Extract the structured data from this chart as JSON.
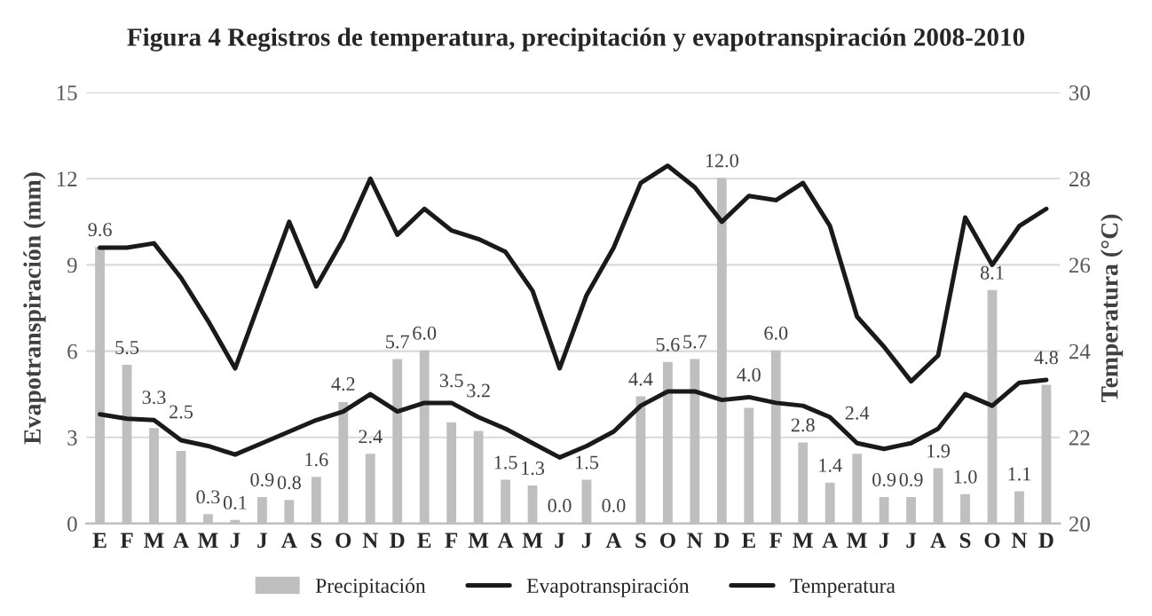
{
  "chart_data": {
    "type": "bar",
    "title": "Figura 4 Registros de temperatura, precipitación y evapotranspiración 2008-2010",
    "categories": [
      "E",
      "F",
      "M",
      "A",
      "M",
      "J",
      "J",
      "A",
      "S",
      "O",
      "N",
      "D",
      "E",
      "F",
      "M",
      "A",
      "M",
      "J",
      "J",
      "A",
      "S",
      "O",
      "N",
      "D",
      "E",
      "F",
      "M",
      "A",
      "M",
      "J",
      "J",
      "A",
      "S",
      "O",
      "N",
      "D"
    ],
    "ylabel": "Evapotranspiración (mm)",
    "y2label": "Temperatura (°C)",
    "ylim": [
      0,
      15
    ],
    "yticks": [
      0,
      3,
      6,
      9,
      12,
      15
    ],
    "y2lim": [
      20,
      30
    ],
    "y2ticks": [
      20,
      22,
      24,
      26,
      28,
      30
    ],
    "grid": "y",
    "legend": "bottom",
    "series": [
      {
        "name": "Precipitación",
        "color": "#bfbfbf",
        "values": [
          9.6,
          5.5,
          3.3,
          2.5,
          0.3,
          0.1,
          0.9,
          0.8,
          1.6,
          4.2,
          2.4,
          5.7,
          6.0,
          3.5,
          3.2,
          1.5,
          1.3,
          0.0,
          1.5,
          0.0,
          4.4,
          5.6,
          5.7,
          12.0,
          4.0,
          6.0,
          2.8,
          1.4,
          2.4,
          0.9,
          0.9,
          1.9,
          1.0,
          8.1,
          1.1,
          4.8
        ],
        "value_labels": [
          "9.6",
          "5.5",
          "3.3",
          "2.5",
          "0.3",
          "0.1",
          "0.9",
          "0.8",
          "1.6",
          "4.2",
          "2.4",
          "5.7",
          "6.0",
          "3.5",
          "3.2",
          "1.5",
          "1.3",
          "0.0",
          "1.5",
          "0.0",
          "4.4",
          "5.6",
          "5.7",
          "12.0",
          "4.0",
          "6.0",
          "2.8",
          "1.4",
          "2.4",
          "0.9",
          "0.9",
          "1.9",
          "1.0",
          "8.1",
          "1.1",
          "4.8"
        ]
      },
      {
        "name": "Evapotranspiración",
        "type": "line",
        "color": "#1a1a1a",
        "values": [
          3.8,
          3.65,
          3.6,
          2.9,
          2.7,
          2.4,
          2.8,
          3.2,
          3.6,
          3.9,
          4.5,
          3.9,
          4.2,
          4.2,
          3.7,
          3.3,
          2.8,
          2.3,
          2.7,
          3.2,
          4.1,
          4.6,
          4.6,
          4.3,
          4.4,
          4.2,
          4.1,
          3.7,
          2.8,
          2.6,
          2.8,
          3.3,
          4.5,
          4.1,
          4.9,
          5.0
        ]
      },
      {
        "name": "Temperatura",
        "type": "line",
        "axis": "y2",
        "color": "#1a1a1a",
        "values": [
          26.4,
          26.4,
          26.5,
          25.7,
          24.7,
          23.6,
          25.3,
          27.0,
          25.5,
          26.6,
          28.0,
          26.7,
          27.3,
          26.8,
          26.6,
          26.3,
          25.4,
          23.6,
          25.3,
          26.4,
          27.9,
          28.3,
          27.8,
          27.0,
          27.6,
          27.5,
          27.9,
          26.9,
          24.8,
          24.1,
          23.3,
          23.9,
          27.1,
          26.0,
          26.9,
          27.3
        ]
      }
    ]
  }
}
